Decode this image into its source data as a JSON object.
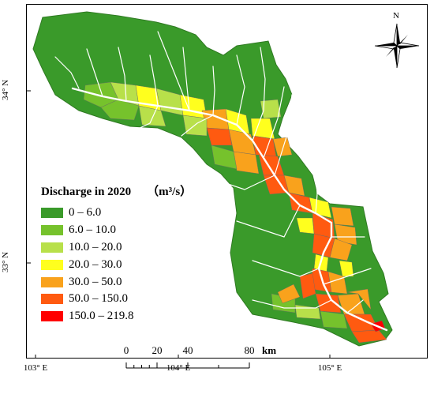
{
  "map": {
    "legend_title": "Discharge in 2020",
    "legend_unit": "（m³/s）",
    "classes": [
      {
        "label": "0 – 6.0",
        "color": "#3a9a2a"
      },
      {
        "label": "6.0 – 10.0",
        "color": "#76c22c"
      },
      {
        "label": "10.0 – 20.0",
        "color": "#b8e04a"
      },
      {
        "label": "20.0 – 30.0",
        "color": "#ffff1e"
      },
      {
        "label": "30.0 – 50.0",
        "color": "#f9a21c"
      },
      {
        "label": "50.0 – 150.0",
        "color": "#ff5a10"
      },
      {
        "label": "150.0 – 219.8",
        "color": "#ff0000"
      }
    ],
    "north_label": "N",
    "lat_labels": {
      "lat_34": "34° N",
      "lat_33": "33° N"
    },
    "lon_labels": {
      "lon_103": "103° E",
      "lon_104": "104° E",
      "lon_105": "105° E"
    },
    "scalebar": {
      "ticks": [
        "0",
        "20",
        "40",
        "80"
      ],
      "unit": "km"
    }
  }
}
